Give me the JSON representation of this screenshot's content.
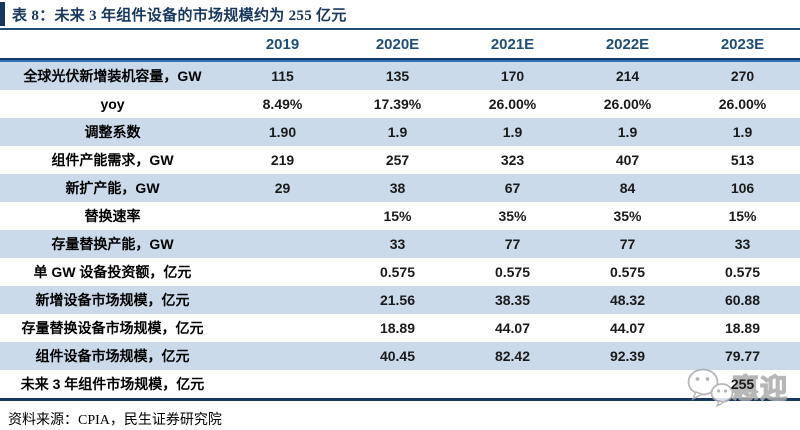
{
  "title": "表 8：未来 3 年组件设备的市场规模约为 255 亿元",
  "source_note": "资料来源：CPIA，民生证券研究院",
  "watermark_text": "惠迎",
  "colors": {
    "navy": "#17375E",
    "header_blue": "#1F4E79",
    "medium_blue": "#2E74B5",
    "row_shade": "#CBDAEA",
    "watermark_gray": "#ABABAB"
  },
  "chart_data": {
    "type": "table",
    "title": "未来 3 年组件设备的市场规模约为 255 亿元",
    "columns": [
      "2019",
      "2020E",
      "2021E",
      "2022E",
      "2023E"
    ],
    "rows": [
      {
        "label": "全球光伏新增装机容量，GW",
        "values": [
          "115",
          "135",
          "170",
          "214",
          "270"
        ]
      },
      {
        "label": "yoy",
        "values": [
          "8.49%",
          "17.39%",
          "26.00%",
          "26.00%",
          "26.00%"
        ]
      },
      {
        "label": "调整系数",
        "values": [
          "1.90",
          "1.9",
          "1.9",
          "1.9",
          "1.9"
        ]
      },
      {
        "label": "组件产能需求，GW",
        "values": [
          "219",
          "257",
          "323",
          "407",
          "513"
        ]
      },
      {
        "label": "新扩产能，GW",
        "values": [
          "29",
          "38",
          "67",
          "84",
          "106"
        ]
      },
      {
        "label": "替换速率",
        "values": [
          "",
          "15%",
          "35%",
          "35%",
          "15%"
        ]
      },
      {
        "label": "存量替换产能，GW",
        "values": [
          "",
          "33",
          "77",
          "77",
          "33"
        ]
      },
      {
        "label": "单 GW 设备投资额，亿元",
        "values": [
          "",
          "0.575",
          "0.575",
          "0.575",
          "0.575"
        ]
      },
      {
        "label": "新增设备市场规模，亿元",
        "values": [
          "",
          "21.56",
          "38.35",
          "48.32",
          "60.88"
        ]
      },
      {
        "label": "存量替换设备市场规模，亿元",
        "values": [
          "",
          "18.89",
          "44.07",
          "44.07",
          "18.89"
        ]
      },
      {
        "label": "组件设备市场规模，亿元",
        "values": [
          "",
          "40.45",
          "82.42",
          "92.39",
          "79.77"
        ]
      },
      {
        "label": "未来 3 年组件市场规模，亿元",
        "values": [
          "",
          "",
          "",
          "",
          "255"
        ]
      }
    ]
  }
}
